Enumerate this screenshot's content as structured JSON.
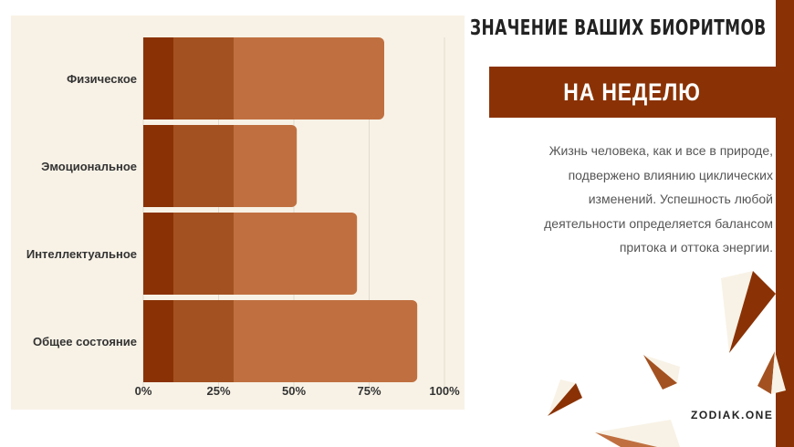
{
  "header": {
    "title": "ЗНАЧЕНИЕ ВАШИХ БИОРИТМОВ",
    "banner": "НА НЕДЕЛЮ"
  },
  "description": "Жизнь человека, как и все в природе, подвержено влиянию циклических изменений. Успешность любой деятельности определяется балансом притока и оттока энергии.",
  "brand": "ZODIAK.ONE",
  "colors": {
    "accent": "#8a3205",
    "segment1": "#8a3205",
    "segment2": "#a35121",
    "segment3": "#c07040",
    "panel": "#f8f2e6",
    "cream": "#f8f2e6"
  },
  "chart_data": {
    "type": "bar",
    "orientation": "horizontal",
    "stacked": true,
    "categories": [
      "Физическое",
      "Эмоциональное",
      "Интеллектуальное",
      "Общее состояние"
    ],
    "series": [
      {
        "values": [
          10,
          10,
          10,
          10
        ]
      },
      {
        "values": [
          20,
          20,
          20,
          20
        ]
      },
      {
        "values": [
          50,
          21,
          41,
          61
        ]
      }
    ],
    "xlim": [
      0,
      100
    ],
    "ticks": [
      "0%",
      "25%",
      "50%",
      "75%",
      "100%"
    ],
    "tick_values": [
      0,
      25,
      50,
      75,
      100
    ],
    "grid": "vertical",
    "legend": "none"
  }
}
